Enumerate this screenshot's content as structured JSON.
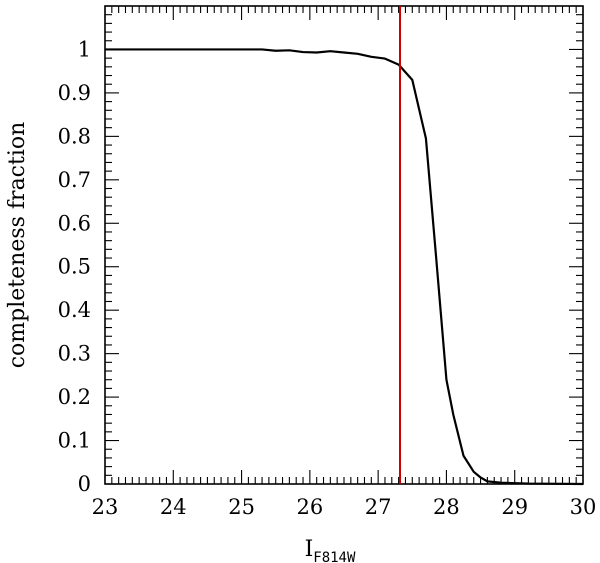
{
  "chart_data": {
    "type": "line",
    "xlabel": "I",
    "xlabel_subscript": "F814W",
    "ylabel": "completeness fraction",
    "xlim": [
      23,
      30
    ],
    "ylim": [
      0,
      1.1
    ],
    "x_ticks": [
      "23",
      "24",
      "25",
      "26",
      "27",
      "28",
      "29",
      "30"
    ],
    "y_ticks": [
      "0",
      "0.1",
      "0.2",
      "0.3",
      "0.4",
      "0.5",
      "0.6",
      "0.7",
      "0.8",
      "0.9",
      "1"
    ],
    "grid": false,
    "series": [
      {
        "color": "#000000",
        "points": [
          [
            23.0,
            1.0
          ],
          [
            23.5,
            1.0
          ],
          [
            24.0,
            1.0
          ],
          [
            24.5,
            1.0
          ],
          [
            25.0,
            1.0
          ],
          [
            25.3,
            1.0
          ],
          [
            25.5,
            0.997
          ],
          [
            25.7,
            0.998
          ],
          [
            25.9,
            0.994
          ],
          [
            26.1,
            0.993
          ],
          [
            26.3,
            0.996
          ],
          [
            26.5,
            0.993
          ],
          [
            26.7,
            0.99
          ],
          [
            26.9,
            0.983
          ],
          [
            27.1,
            0.979
          ],
          [
            27.3,
            0.965
          ],
          [
            27.5,
            0.93
          ],
          [
            27.7,
            0.795
          ],
          [
            27.85,
            0.52
          ],
          [
            28.0,
            0.24
          ],
          [
            28.1,
            0.16
          ],
          [
            28.25,
            0.065
          ],
          [
            28.4,
            0.028
          ],
          [
            28.5,
            0.015
          ],
          [
            28.6,
            0.006
          ],
          [
            28.8,
            0.003
          ],
          [
            29.2,
            0.001
          ],
          [
            30.0,
            0.0
          ]
        ]
      }
    ],
    "vertical_lines": [
      {
        "x": 27.32,
        "color": "#cc0000"
      }
    ]
  }
}
